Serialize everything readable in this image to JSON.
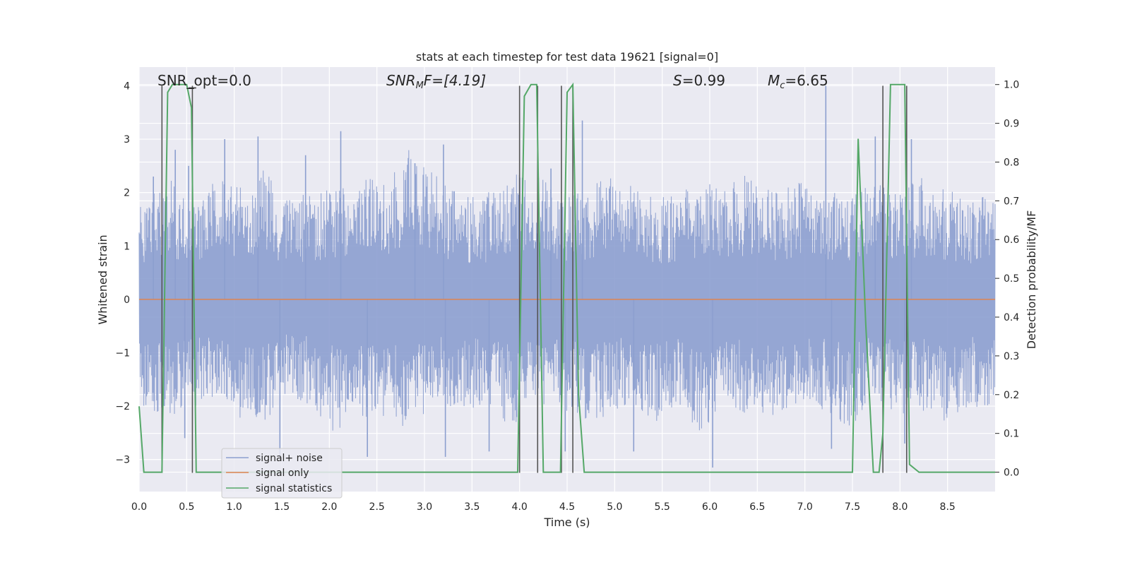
{
  "chart_data": {
    "type": "line",
    "title": "stats at each timestep for test data 19621 [signal=0]",
    "xlabel": "Time (s)",
    "ylabel_left": "Whitened strain",
    "ylabel_right": "Detection probability/MF",
    "xlim": [
      0.0,
      9.0
    ],
    "ylim_left": [
      -3.6,
      4.35
    ],
    "ylim_right": [
      -0.05,
      1.045
    ],
    "x_ticks": [
      "0.0",
      "0.5",
      "1.0",
      "1.5",
      "2.0",
      "2.5",
      "3.0",
      "3.5",
      "4.0",
      "4.5",
      "5.0",
      "5.5",
      "6.0",
      "6.5",
      "7.0",
      "7.5",
      "8.0",
      "8.5"
    ],
    "y_ticks_left": [
      "−3",
      "−2",
      "−1",
      "0",
      "1",
      "2",
      "3",
      "4"
    ],
    "y_ticks_right": [
      "0.0",
      "0.1",
      "0.2",
      "0.3",
      "0.4",
      "0.5",
      "0.6",
      "0.7",
      "0.8",
      "0.9",
      "1.0"
    ],
    "annotations": {
      "snr_opt": "SNR_opt=0.0",
      "snr_mf_italic": "SNR",
      "snr_mf_sub": "M",
      "snr_mf_rest": "F=[4.19]",
      "s_italic": "S",
      "s_rest": "=0.99",
      "mc_italic": "M",
      "mc_sub": "c",
      "mc_rest": "=6.65"
    },
    "legend": [
      {
        "label": "signal+ noise",
        "color": "#8c9fcf"
      },
      {
        "label": "signal only",
        "color": "#dd8452"
      },
      {
        "label": "signal statistics",
        "color": "#55a868"
      }
    ],
    "series": [
      {
        "name": "signal statistics",
        "axis": "right",
        "color": "#55a868",
        "x": [
          0.0,
          0.05,
          0.24,
          0.3,
          0.35,
          0.5,
          0.55,
          0.6,
          0.65,
          3.98,
          4.05,
          4.12,
          4.18,
          4.25,
          4.32,
          4.43,
          4.5,
          4.56,
          4.62,
          4.68,
          7.5,
          7.56,
          7.64,
          7.72,
          7.78,
          7.82,
          7.9,
          8.05,
          8.1,
          8.2,
          9.0
        ],
        "values": [
          0.17,
          0.0,
          0.0,
          0.98,
          1.0,
          1.0,
          0.94,
          0.0,
          0.0,
          0.0,
          0.97,
          1.0,
          1.0,
          0.0,
          0.0,
          0.0,
          0.98,
          1.0,
          0.2,
          0.0,
          0.0,
          0.86,
          0.38,
          0.0,
          0.0,
          0.1,
          1.0,
          1.0,
          0.02,
          0.0,
          0.0
        ]
      },
      {
        "name": "signal+ noise",
        "axis": "left",
        "color": "#8c9fcf",
        "envelope_upper": [
          1.8,
          2.4,
          1.9,
          2.3,
          2.2,
          2.5,
          1.9,
          2.0,
          2.1,
          2.3,
          2.2,
          2.9,
          2.4,
          2.0,
          1.9,
          2.3,
          2.6,
          2.1,
          2.0,
          2.4,
          2.2,
          1.9,
          2.0,
          2.3,
          2.1,
          2.4,
          2.0,
          2.2,
          2.1,
          1.9,
          2.2,
          2.0,
          2.3,
          2.1,
          1.9,
          2.2
        ],
        "envelope_lower": [
          -2.0,
          -2.3,
          -2.1,
          -1.9,
          -2.2,
          -2.4,
          -1.8,
          -2.0,
          -2.5,
          -2.2,
          -2.3,
          -2.6,
          -1.9,
          -2.1,
          -2.0,
          -2.4,
          -2.2,
          -1.9,
          -2.3,
          -2.2,
          -2.0,
          -2.4,
          -2.1,
          -2.6,
          -2.0,
          -2.2,
          -2.3,
          -1.9,
          -2.1,
          -2.4,
          -2.0,
          -2.2,
          -2.1,
          -2.3,
          -2.0,
          -2.1
        ],
        "spikes": [
          [
            0.15,
            2.3
          ],
          [
            0.38,
            2.8
          ],
          [
            0.52,
            2.5
          ],
          [
            0.9,
            3.0
          ],
          [
            1.25,
            3.05
          ],
          [
            1.75,
            2.7
          ],
          [
            2.12,
            3.15
          ],
          [
            2.9,
            2.55
          ],
          [
            3.2,
            2.9
          ],
          [
            4.33,
            2.45
          ],
          [
            4.66,
            3.35
          ],
          [
            7.22,
            4.0
          ],
          [
            7.74,
            3.05
          ],
          [
            8.12,
            3.0
          ],
          [
            0.48,
            -2.6
          ],
          [
            1.48,
            -2.95
          ],
          [
            2.4,
            -2.95
          ],
          [
            3.22,
            -2.95
          ],
          [
            3.68,
            -2.85
          ],
          [
            4.48,
            -2.85
          ],
          [
            5.2,
            -2.85
          ],
          [
            6.03,
            -3.15
          ],
          [
            7.28,
            -2.8
          ],
          [
            8.05,
            -2.7
          ]
        ]
      },
      {
        "name": "signal only",
        "axis": "left",
        "color": "#dd8452",
        "x": [
          0.0,
          9.0
        ],
        "values": [
          0.0,
          0.0
        ]
      }
    ],
    "vertical_markers": [
      0.24,
      0.56,
      4.0,
      4.19,
      4.44,
      4.56,
      7.82,
      8.07
    ]
  }
}
